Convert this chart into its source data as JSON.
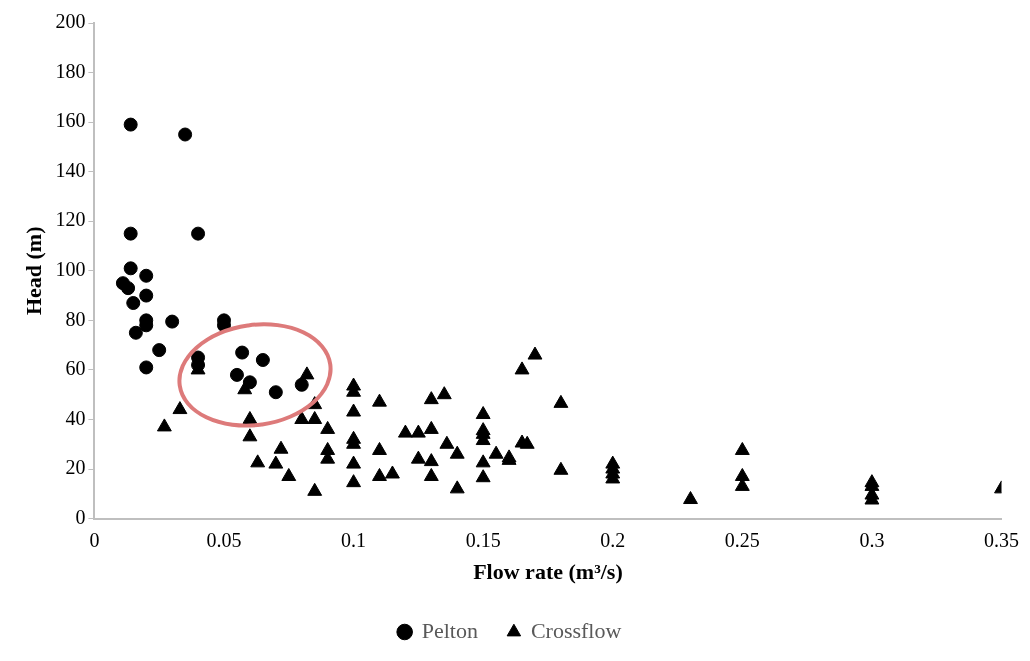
{
  "chart_data": {
    "type": "scatter",
    "xlabel": "Flow rate (m³/s)",
    "ylabel": "Head (m)",
    "xlim": [
      0,
      0.35
    ],
    "xticks": [
      0,
      0.05,
      0.1,
      0.15,
      0.2,
      0.25,
      0.3,
      0.35
    ],
    "ylim": [
      0,
      200
    ],
    "yticks": [
      0,
      20,
      40,
      60,
      80,
      100,
      120,
      140,
      160,
      180,
      200
    ],
    "grid": false,
    "legend": "bottom",
    "series": [
      {
        "name": "Pelton",
        "color": "#000000",
        "marker": "circle",
        "x": [
          0.014,
          0.035,
          0.014,
          0.04,
          0.014,
          0.02,
          0.011,
          0.013,
          0.02,
          0.015,
          0.02,
          0.02,
          0.03,
          0.05,
          0.05,
          0.016,
          0.025,
          0.04,
          0.04,
          0.02,
          0.057,
          0.065,
          0.055,
          0.06,
          0.07,
          0.08
        ],
        "values": [
          159,
          155,
          115,
          115,
          101,
          98,
          95,
          93,
          90,
          87,
          80,
          78,
          79.5,
          80,
          78,
          75,
          68,
          65,
          62,
          61,
          67,
          64,
          58,
          55,
          51,
          54
        ]
      },
      {
        "name": "Crossflow",
        "color": "#000000",
        "marker": "triangle",
        "x": [
          0.027,
          0.033,
          0.04,
          0.058,
          0.06,
          0.06,
          0.063,
          0.072,
          0.07,
          0.075,
          0.082,
          0.08,
          0.085,
          0.085,
          0.085,
          0.09,
          0.09,
          0.09,
          0.1,
          0.1,
          0.1,
          0.1,
          0.1,
          0.1,
          0.1,
          0.11,
          0.11,
          0.11,
          0.115,
          0.12,
          0.125,
          0.13,
          0.13,
          0.135,
          0.136,
          0.14,
          0.125,
          0.13,
          0.13,
          0.14,
          0.15,
          0.15,
          0.15,
          0.15,
          0.15,
          0.15,
          0.155,
          0.16,
          0.16,
          0.165,
          0.17,
          0.165,
          0.167,
          0.18,
          0.18,
          0.2,
          0.2,
          0.2,
          0.2,
          0.23,
          0.25,
          0.25,
          0.25,
          0.3,
          0.3,
          0.3,
          0.3,
          0.35
        ],
        "values": [
          37,
          44,
          60,
          52,
          40,
          33,
          22.5,
          28,
          22,
          17,
          58,
          40,
          46,
          40,
          11,
          36,
          27.5,
          24,
          53.5,
          51,
          43,
          32,
          30,
          22,
          14.5,
          47,
          27.5,
          17,
          18,
          34.5,
          34.5,
          36,
          48,
          50,
          30,
          26,
          24,
          23,
          17,
          12,
          42,
          35.5,
          34,
          31.5,
          22.5,
          16.5,
          26,
          24.5,
          23.5,
          60,
          66,
          30.5,
          30,
          46.5,
          19.5,
          22,
          20,
          18,
          16,
          7.7,
          27.5,
          17,
          13,
          14.5,
          13,
          9.5,
          7.5,
          12
        ]
      }
    ]
  }
}
